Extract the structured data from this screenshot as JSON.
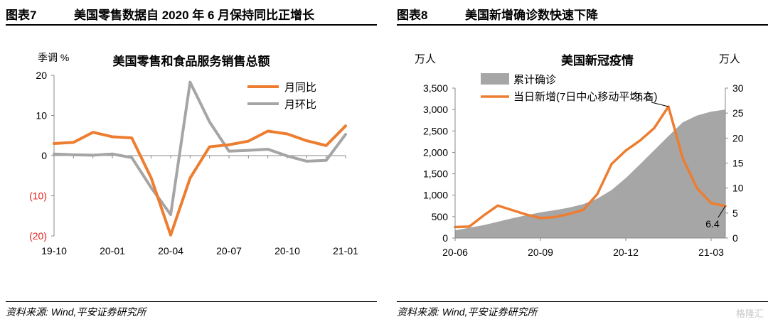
{
  "left": {
    "figure_number": "图表7",
    "figure_title": "美国零售数据自 2020 年 6 月保持同比正增长",
    "source": "资料来源: Wind,平安证券研究所"
  },
  "right": {
    "figure_number": "图表8",
    "figure_title": "美国新增确诊数快速下降",
    "source": "资料来源: Wind,平安证券研究所"
  },
  "watermark": "格隆汇",
  "chart_data": [
    {
      "type": "line",
      "title": "美国零售和食品服务销售总额",
      "ylabel": "季调 %",
      "ylim": [
        -20,
        20
      ],
      "yticks": [
        20,
        10,
        0,
        -10,
        -20
      ],
      "yticklabels": [
        "20",
        "10",
        "0",
        "(10)",
        "(20)"
      ],
      "negative_tick_color": "#e8201a",
      "x": [
        "19-10",
        "19-11",
        "19-12",
        "20-01",
        "20-02",
        "20-03",
        "20-04",
        "20-05",
        "20-06",
        "20-07",
        "20-08",
        "20-09",
        "20-10",
        "20-11",
        "20-12",
        "21-01"
      ],
      "xticks": [
        "19-10",
        "20-01",
        "20-04",
        "20-07",
        "20-10",
        "21-01"
      ],
      "legend_position": "top-right",
      "series": [
        {
          "name": "月同比",
          "color": "#ed7d31",
          "values": [
            3.0,
            3.3,
            5.8,
            4.7,
            4.4,
            -5.6,
            -19.8,
            -5.6,
            2.2,
            2.7,
            3.6,
            6.1,
            5.4,
            3.7,
            2.5,
            7.4
          ]
        },
        {
          "name": "月环比",
          "color": "#a5a5a5",
          "values": [
            0.4,
            0.2,
            0.1,
            0.4,
            -0.5,
            -8.0,
            -14.7,
            18.3,
            8.4,
            1.1,
            1.3,
            1.6,
            -0.1,
            -1.4,
            -1.2,
            5.3
          ]
        }
      ]
    },
    {
      "type": "area",
      "title": "美国新冠疫情",
      "ylabel_left": "万人",
      "ylabel_right": "万人",
      "ylim_left": [
        0,
        3500
      ],
      "ylim_right": [
        0,
        30
      ],
      "yticks_left": [
        "0",
        "500",
        "1,000",
        "1,500",
        "2,000",
        "2,500",
        "3,000",
        "3,500"
      ],
      "yticks_right": [
        "0",
        "5",
        "10",
        "15",
        "20",
        "25",
        "30"
      ],
      "xticks": [
        "20-06",
        "20-09",
        "20-12",
        "21-03"
      ],
      "x": [
        "20-06-01",
        "20-06-15",
        "20-07-01",
        "20-07-15",
        "20-08-01",
        "20-08-15",
        "20-09-01",
        "20-09-15",
        "20-10-01",
        "20-10-15",
        "20-11-01",
        "20-11-15",
        "20-12-01",
        "20-12-15",
        "21-01-01",
        "21-01-15",
        "21-02-01",
        "21-02-15",
        "21-03-01",
        "21-03-15"
      ],
      "legend_position": "top-left",
      "series": [
        {
          "name": "累计确诊",
          "color": "#a6a6a6",
          "axis": "left",
          "values": [
            180,
            240,
            300,
            380,
            460,
            530,
            600,
            650,
            710,
            790,
            920,
            1120,
            1400,
            1720,
            2050,
            2380,
            2700,
            2860,
            2950,
            3000
          ]
        },
        {
          "name": "当日新增(7日中心移动平均,右)",
          "color": "#ed7d31",
          "axis": "right",
          "values": [
            2.2,
            2.3,
            4.5,
            6.5,
            5.6,
            4.7,
            4.0,
            4.2,
            4.8,
            5.6,
            8.8,
            14.8,
            17.5,
            19.5,
            22.0,
            26.3,
            16.0,
            10.0,
            7.0,
            6.4
          ]
        }
      ],
      "annotations": [
        {
          "text": "26.3",
          "series": 1,
          "point": 15
        },
        {
          "text": "6.4",
          "series": 1,
          "point": 19
        }
      ]
    }
  ]
}
